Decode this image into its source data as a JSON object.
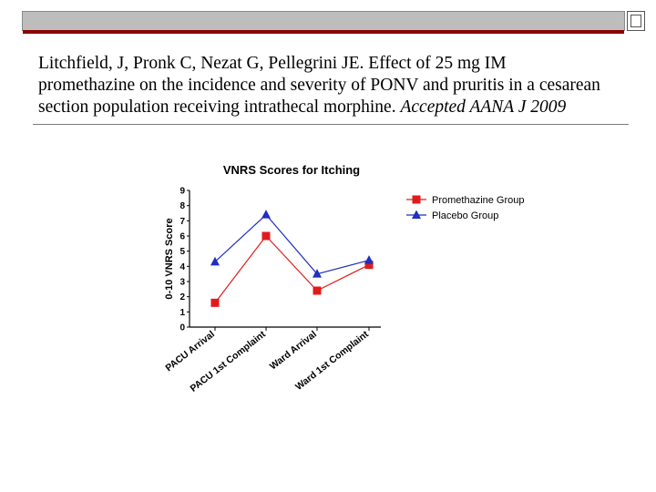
{
  "citation": {
    "line1": "Litchfield, J, Pronk C, Nezat G, Pellegrini JE. Effect of 25 mg IM",
    "line2": "promethazine on the incidence and severity of PONV and pruritis in a cesarean",
    "line3_plain": "section population receiving intrathecal morphine.",
    "line3_italic": "Accepted AANA J 2009"
  },
  "colors": {
    "band": "#bdbdbd",
    "accent_red": "#8b0000",
    "promethazine": "#e31a1c",
    "placebo": "#1f2fbf"
  },
  "chart_data": {
    "type": "line",
    "title": "VNRS Scores for Itching",
    "ylabel": "0-10 VNRS Score",
    "xlabel": "",
    "ylim": [
      0,
      9
    ],
    "yticks": [
      "0",
      "1",
      "2",
      "3",
      "4",
      "5",
      "6",
      "7",
      "8",
      "9"
    ],
    "categories": [
      "PACU Arrival",
      "PACU 1st Complaint",
      "Ward Arrival",
      "Ward 1st Complaint"
    ],
    "series": [
      {
        "name": "Promethazine Group",
        "marker": "square",
        "color": "#e31a1c",
        "values": [
          1.6,
          6.0,
          2.4,
          4.1
        ]
      },
      {
        "name": "Placebo Group",
        "marker": "triangle",
        "color": "#1f2fbf",
        "values": [
          4.3,
          7.4,
          3.5,
          4.4
        ]
      }
    ],
    "legend": "top-right",
    "grid": false
  }
}
